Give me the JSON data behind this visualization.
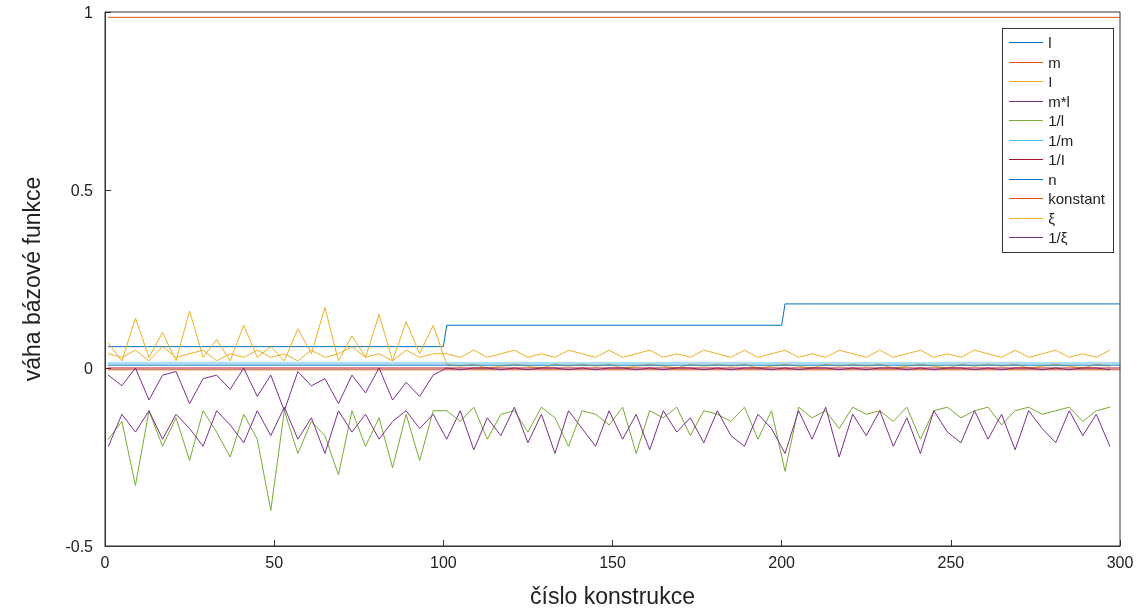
{
  "chart_data": {
    "type": "line",
    "xlabel": "číslo konstrukce",
    "ylabel": "váha bázové funkce",
    "x": [
      1,
      5,
      9,
      13,
      17,
      21,
      25,
      29,
      33,
      37,
      41,
      45,
      49,
      53,
      57,
      61,
      65,
      69,
      73,
      77,
      81,
      85,
      89,
      93,
      97,
      101,
      105,
      109,
      113,
      117,
      121,
      125,
      129,
      133,
      137,
      141,
      145,
      149,
      153,
      157,
      161,
      165,
      169,
      173,
      177,
      181,
      185,
      189,
      193,
      197,
      201,
      205,
      209,
      213,
      217,
      221,
      225,
      229,
      233,
      237,
      241,
      245,
      249,
      253,
      257,
      261,
      265,
      269,
      273,
      277,
      281,
      285,
      289,
      293,
      297
    ],
    "xlim": [
      0,
      300
    ],
    "xticks": [
      0,
      50,
      100,
      150,
      200,
      250,
      300
    ],
    "ylim": [
      -0.5,
      1
    ],
    "yticks": [
      -0.5,
      0,
      0.5,
      1
    ],
    "grid": false,
    "legend": "top right",
    "marker": "none",
    "line_style": "solid",
    "series": [
      {
        "name": "l",
        "color": "#0072bd",
        "x": [
          1,
          100,
          101,
          200,
          201,
          300
        ],
        "values": [
          0.06,
          0.06,
          0.12,
          0.12,
          0.18,
          0.18
        ]
      },
      {
        "name": "m",
        "color": "#d95319",
        "x": [
          1,
          300
        ],
        "values": [
          -0.005,
          -0.005
        ]
      },
      {
        "name": "I",
        "color": "#edb120",
        "values": [
          0.07,
          0.02,
          0.14,
          0.03,
          0.1,
          0.02,
          0.16,
          0.03,
          0.08,
          0.02,
          0.12,
          0.03,
          0.06,
          0.02,
          0.11,
          0.04,
          0.17,
          0.02,
          0.09,
          0.03,
          0.15,
          0.02,
          0.13,
          0.04,
          0.12,
          0.01,
          0.005,
          0.01,
          0,
          0.005,
          0.01,
          0.005,
          0,
          0.01,
          0.005,
          0.01,
          0.005,
          0.01,
          0,
          0.005,
          0.01,
          0.005,
          0,
          0.01,
          0.005,
          0.01,
          0.005,
          0.01,
          0,
          0.005,
          0.01,
          0.005,
          0,
          0.01,
          0.005,
          0.01,
          0.005,
          0.01,
          0,
          0.005,
          0.01,
          0.005,
          0,
          0.01,
          0.005,
          0.01,
          0.005,
          0.01,
          0,
          0.005,
          0.01,
          0.005,
          0,
          0.01,
          0.005
        ]
      },
      {
        "name": "m*l",
        "color": "#7e2f8e",
        "values": [
          -0.02,
          -0.05,
          0,
          -0.09,
          -0.02,
          -0.01,
          -0.1,
          -0.03,
          -0.02,
          -0.06,
          0,
          -0.08,
          -0.02,
          -0.12,
          -0.01,
          -0.05,
          -0.03,
          -0.1,
          -0.02,
          -0.07,
          0,
          -0.09,
          -0.04,
          -0.08,
          -0.02,
          0,
          -0.005,
          0,
          0,
          -0.005,
          0,
          -0.005,
          0,
          0,
          -0.005,
          0,
          -0.005,
          0,
          0,
          -0.005,
          0,
          -0.005,
          0,
          0,
          -0.005,
          0,
          -0.005,
          0,
          0,
          -0.005,
          0,
          -0.005,
          0,
          0,
          -0.005,
          0,
          -0.005,
          0,
          0,
          -0.005,
          0,
          -0.005,
          0,
          0,
          -0.005,
          0,
          -0.005,
          0,
          0,
          -0.005,
          0,
          -0.005,
          0,
          0,
          -0.005
        ]
      },
      {
        "name": "1/l",
        "color": "#77ac30",
        "values": [
          -0.2,
          -0.15,
          -0.33,
          -0.12,
          -0.22,
          -0.14,
          -0.26,
          -0.12,
          -0.18,
          -0.25,
          -0.13,
          -0.2,
          -0.4,
          -0.12,
          -0.24,
          -0.15,
          -0.19,
          -0.3,
          -0.12,
          -0.22,
          -0.14,
          -0.28,
          -0.13,
          -0.26,
          -0.12,
          -0.12,
          -0.15,
          -0.11,
          -0.2,
          -0.13,
          -0.12,
          -0.18,
          -0.11,
          -0.14,
          -0.22,
          -0.12,
          -0.13,
          -0.16,
          -0.11,
          -0.24,
          -0.12,
          -0.14,
          -0.11,
          -0.19,
          -0.12,
          -0.13,
          -0.15,
          -0.11,
          -0.2,
          -0.12,
          -0.29,
          -0.11,
          -0.14,
          -0.12,
          -0.17,
          -0.11,
          -0.13,
          -0.12,
          -0.15,
          -0.11,
          -0.2,
          -0.12,
          -0.11,
          -0.14,
          -0.12,
          -0.11,
          -0.16,
          -0.12,
          -0.11,
          -0.13,
          -0.12,
          -0.11,
          -0.15,
          -0.12,
          -0.11
        ]
      },
      {
        "name": "1/m",
        "color": "#4dbeee",
        "x": [
          1,
          300
        ],
        "values": [
          0.014,
          0.014
        ]
      },
      {
        "name": "1/I",
        "color": "#a2142f",
        "x": [
          1,
          300
        ],
        "values": [
          0,
          0
        ]
      },
      {
        "name": "n",
        "color": "#0072bd",
        "x": [
          1,
          300
        ],
        "values": [
          0.008,
          0.008
        ]
      },
      {
        "name": "konstant",
        "color": "#d95319",
        "x": [
          1,
          300
        ],
        "values": [
          0.985,
          0.985
        ]
      },
      {
        "name": "ξ",
        "color": "#edb120",
        "values": [
          0.04,
          0.03,
          0.05,
          0.02,
          0.06,
          0.03,
          0.04,
          0.05,
          0.02,
          0.04,
          0.03,
          0.05,
          0.03,
          0.04,
          0.02,
          0.05,
          0.03,
          0.04,
          0.06,
          0.03,
          0.04,
          0.02,
          0.05,
          0.03,
          0.04,
          0.04,
          0.03,
          0.05,
          0.03,
          0.04,
          0.05,
          0.03,
          0.04,
          0.03,
          0.05,
          0.04,
          0.03,
          0.05,
          0.03,
          0.04,
          0.05,
          0.03,
          0.04,
          0.03,
          0.05,
          0.04,
          0.03,
          0.05,
          0.03,
          0.04,
          0.05,
          0.03,
          0.04,
          0.03,
          0.05,
          0.04,
          0.03,
          0.05,
          0.03,
          0.04,
          0.05,
          0.03,
          0.04,
          0.03,
          0.05,
          0.04,
          0.03,
          0.05,
          0.03,
          0.04,
          0.05,
          0.03,
          0.04,
          0.03,
          0.05
        ]
      },
      {
        "name": "1/ξ",
        "color": "#7e2f8e",
        "values": [
          -0.22,
          -0.13,
          -0.18,
          -0.12,
          -0.2,
          -0.13,
          -0.17,
          -0.22,
          -0.12,
          -0.16,
          -0.21,
          -0.12,
          -0.19,
          -0.11,
          -0.2,
          -0.14,
          -0.24,
          -0.12,
          -0.18,
          -0.13,
          -0.2,
          -0.15,
          -0.12,
          -0.17,
          -0.13,
          -0.2,
          -0.12,
          -0.23,
          -0.14,
          -0.19,
          -0.11,
          -0.21,
          -0.13,
          -0.24,
          -0.12,
          -0.17,
          -0.22,
          -0.12,
          -0.2,
          -0.13,
          -0.23,
          -0.12,
          -0.18,
          -0.14,
          -0.21,
          -0.12,
          -0.19,
          -0.22,
          -0.13,
          -0.17,
          -0.24,
          -0.12,
          -0.2,
          -0.11,
          -0.25,
          -0.13,
          -0.19,
          -0.12,
          -0.22,
          -0.14,
          -0.24,
          -0.12,
          -0.18,
          -0.21,
          -0.12,
          -0.2,
          -0.13,
          -0.23,
          -0.12,
          -0.17,
          -0.21,
          -0.12,
          -0.19,
          -0.13,
          -0.22
        ]
      }
    ]
  }
}
